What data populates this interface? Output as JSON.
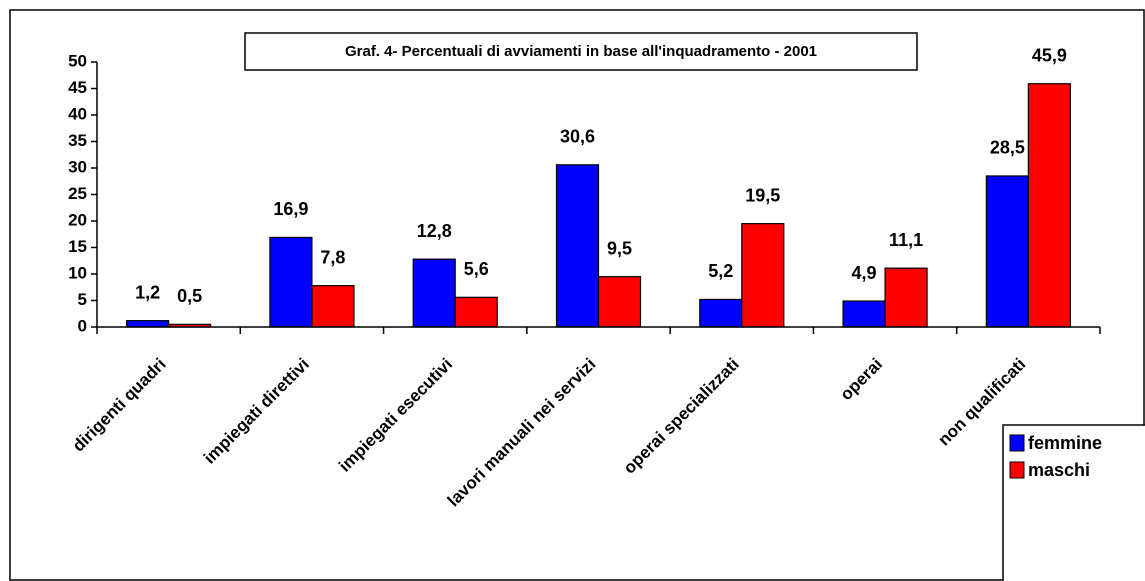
{
  "chart_data": {
    "type": "bar",
    "title": "Graf. 4- Percentuali di avviamenti in base all'inquadramento - 2001",
    "categories": [
      "dirigenti quadri",
      "impiegati direttivi",
      "impiegati esecutivi",
      "lavori manuali nei servizi",
      "operai specializzati",
      "operai",
      "non qualificati"
    ],
    "series": [
      {
        "name": "femmine",
        "color": "#0000ff",
        "values": [
          1.2,
          16.9,
          12.8,
          30.6,
          5.2,
          4.9,
          28.5
        ],
        "value_labels": [
          "1,2",
          "16,9",
          "12,8",
          "30,6",
          "5,2",
          "4,9",
          "28,5"
        ]
      },
      {
        "name": "maschi",
        "color": "#ff0000",
        "values": [
          0.5,
          7.8,
          5.6,
          9.5,
          19.5,
          11.1,
          45.9
        ],
        "value_labels": [
          "0,5",
          "7,8",
          "5,6",
          "9,5",
          "19,5",
          "11,1",
          "45,9"
        ]
      }
    ],
    "ylim": [
      0,
      50
    ],
    "yticks": [
      0,
      5,
      10,
      15,
      20,
      25,
      30,
      35,
      40,
      45,
      50
    ],
    "legend": "bottom-right"
  }
}
